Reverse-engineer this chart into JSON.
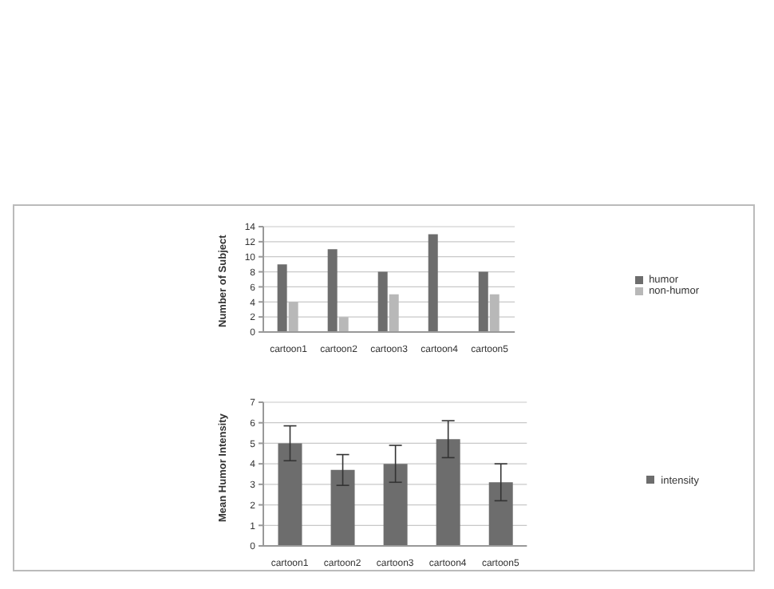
{
  "chart_data": [
    {
      "type": "bar",
      "categories": [
        "cartoon1",
        "cartoon2",
        "cartoon3",
        "cartoon4",
        "cartoon5"
      ],
      "ylabel": "Number of Subject",
      "ylim": [
        0,
        14
      ],
      "yticks": [
        0,
        2,
        4,
        6,
        8,
        10,
        12,
        14
      ],
      "grid": "y",
      "legend": "right",
      "series": [
        {
          "name": "humor",
          "color": "#6d6d6d",
          "values": [
            9,
            11,
            8,
            13,
            8
          ]
        },
        {
          "name": "non-humor",
          "color": "#b8b8b8",
          "values": [
            4,
            2,
            5,
            0,
            5
          ]
        }
      ]
    },
    {
      "type": "bar",
      "categories": [
        "cartoon1",
        "cartoon2",
        "cartoon3",
        "cartoon4",
        "cartoon5"
      ],
      "ylabel": "Mean Humor Intensity",
      "ylim": [
        0,
        7
      ],
      "yticks": [
        0,
        1,
        2,
        3,
        4,
        5,
        6,
        7
      ],
      "grid": "y",
      "legend": "right",
      "series": [
        {
          "name": "intensity",
          "color": "#6d6d6d",
          "values": [
            5.0,
            3.7,
            4.0,
            5.2,
            3.1
          ],
          "errors": [
            0.85,
            0.75,
            0.9,
            0.9,
            0.9
          ]
        }
      ]
    }
  ]
}
